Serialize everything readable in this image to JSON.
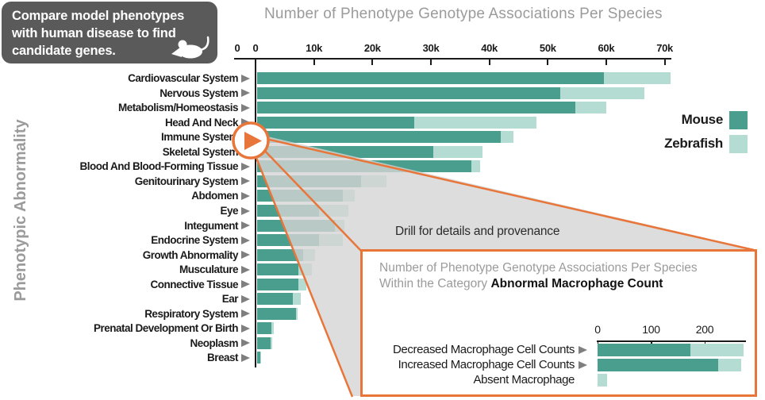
{
  "infobox": {
    "lines": [
      "Compare model phenotypes",
      "with human disease to find",
      "candidate genes."
    ]
  },
  "callout": {
    "drill_label": "Drill for details and provenance",
    "play_icon": "play-triangle"
  },
  "legend": {
    "position": "right",
    "items": [
      {
        "label": "Mouse",
        "color": "#4a9e8d"
      },
      {
        "label": "Zebrafish",
        "color": "#b5dcd3"
      }
    ]
  },
  "colors": {
    "mouse": "#4a9e8d",
    "zebrafish": "#b5dcd3",
    "accent_orange": "#e8763a",
    "funnel_gray": "rgba(213,213,213,0.8)",
    "infobox_gray": "#5a5a5a",
    "title_gray": "#9b9b9b",
    "arrow_gray": "#7f7f7f"
  },
  "chart_data": [
    {
      "id": "main",
      "type": "bar",
      "orientation": "horizontal",
      "stacked": true,
      "title": "Number of Phenotype Genotype Associations Per Species",
      "ylabel": "Phenotypic Abnormality",
      "xlim": [
        0,
        70000
      ],
      "grid": false,
      "legend_position": "right",
      "extra_left_tick_label": "0",
      "x_tick_labels": [
        "0",
        "10k",
        "20k",
        "30k",
        "40k",
        "50k",
        "60k",
        "70k"
      ],
      "x_tick_values": [
        0,
        10000,
        20000,
        30000,
        40000,
        50000,
        60000,
        70000
      ],
      "categories": [
        "Cardiovascular System",
        "Nervous System",
        "Metabolism/Homeostasis",
        "Head And Neck",
        "Immune System",
        "Skeletal System",
        "Blood And Blood-Forming Tissue",
        "Genitourinary System",
        "Abdomen",
        "Eye",
        "Integument",
        "Endocrine System",
        "Growth Abnormality",
        "Musculature",
        "Connective Tissue",
        "Ear",
        "Respiratory System",
        "Prenatal Development Or Birth",
        "Neoplasm",
        "Breast"
      ],
      "series": [
        {
          "name": "Mouse",
          "color": "#4a9e8d",
          "values": [
            59300,
            51800,
            54400,
            26900,
            41700,
            30100,
            36600,
            17800,
            14700,
            10600,
            13300,
            10600,
            7900,
            7100,
            7100,
            6100,
            6600,
            2400,
            2300,
            500
          ]
        },
        {
          "name": "Zebrafish",
          "color": "#b5dcd3",
          "values": [
            11500,
            14400,
            5400,
            20900,
            2100,
            8400,
            1500,
            4300,
            2000,
            5000,
            1600,
            4100,
            2000,
            2300,
            1300,
            1400,
            300,
            400,
            300,
            200
          ]
        }
      ]
    },
    {
      "id": "inset",
      "type": "bar",
      "orientation": "horizontal",
      "stacked": true,
      "title": "Number of Phenotype Genotype Associations Per Species",
      "subtitle_prefix": "Within the Category ",
      "subtitle_bold": "Abnormal Macrophage Count",
      "xlim": [
        0,
        280
      ],
      "grid": false,
      "x_tick_labels": [
        "0",
        "100",
        "200"
      ],
      "x_tick_values": [
        0,
        100,
        200
      ],
      "categories": [
        "Decreased Macrophage Cell Counts",
        "Increased Macrophage Cell Counts",
        "Absent Macrophage"
      ],
      "category_has_arrow": [
        true,
        true,
        false
      ],
      "series": [
        {
          "name": "Mouse",
          "color": "#4a9e8d",
          "values": [
            173,
            225,
            0
          ]
        },
        {
          "name": "Zebrafish",
          "color": "#b5dcd3",
          "values": [
            100,
            43,
            18
          ]
        }
      ]
    }
  ]
}
